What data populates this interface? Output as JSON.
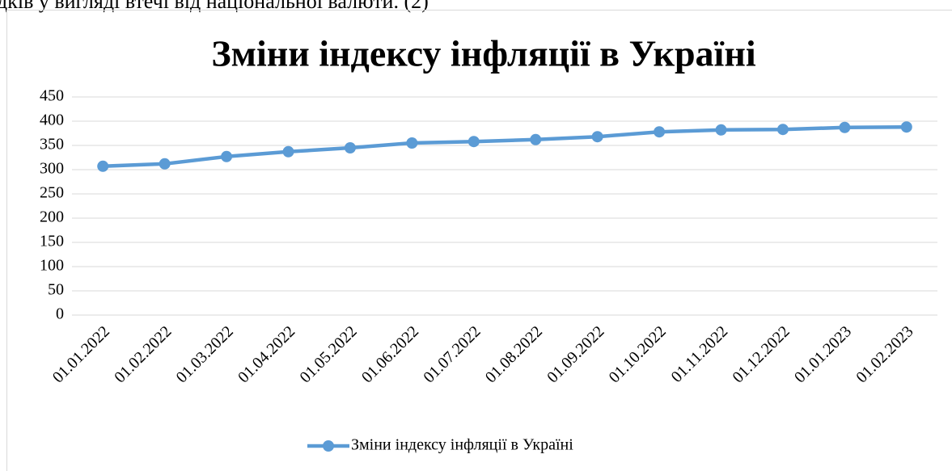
{
  "document_text": "дків у вигляді втечі від національної валюти. (2)",
  "chart_data": {
    "type": "line",
    "title": "Зміни індексу інфляції в Україні",
    "categories": [
      "01.01.2022",
      "01.02.2022",
      "01.03.2022",
      "01.04.2022",
      "01.05.2022",
      "01.06.2022",
      "01.07.2022",
      "01.08.2022",
      "01.09.2022",
      "01.10.2022",
      "01.11.2022",
      "01.12.2022",
      "01.01.2023",
      "01.02.2023"
    ],
    "series": [
      {
        "name": "Зміни індексу інфляції в Україні",
        "color": "#5b9bd5",
        "values": [
          307,
          312,
          327,
          337,
          345,
          355,
          358,
          362,
          368,
          378,
          382,
          383,
          387,
          388
        ]
      }
    ],
    "ylim": [
      0,
      450
    ],
    "yticks": [
      0,
      50,
      100,
      150,
      200,
      250,
      300,
      350,
      400,
      450
    ],
    "grid": true,
    "legend": "bottom"
  }
}
